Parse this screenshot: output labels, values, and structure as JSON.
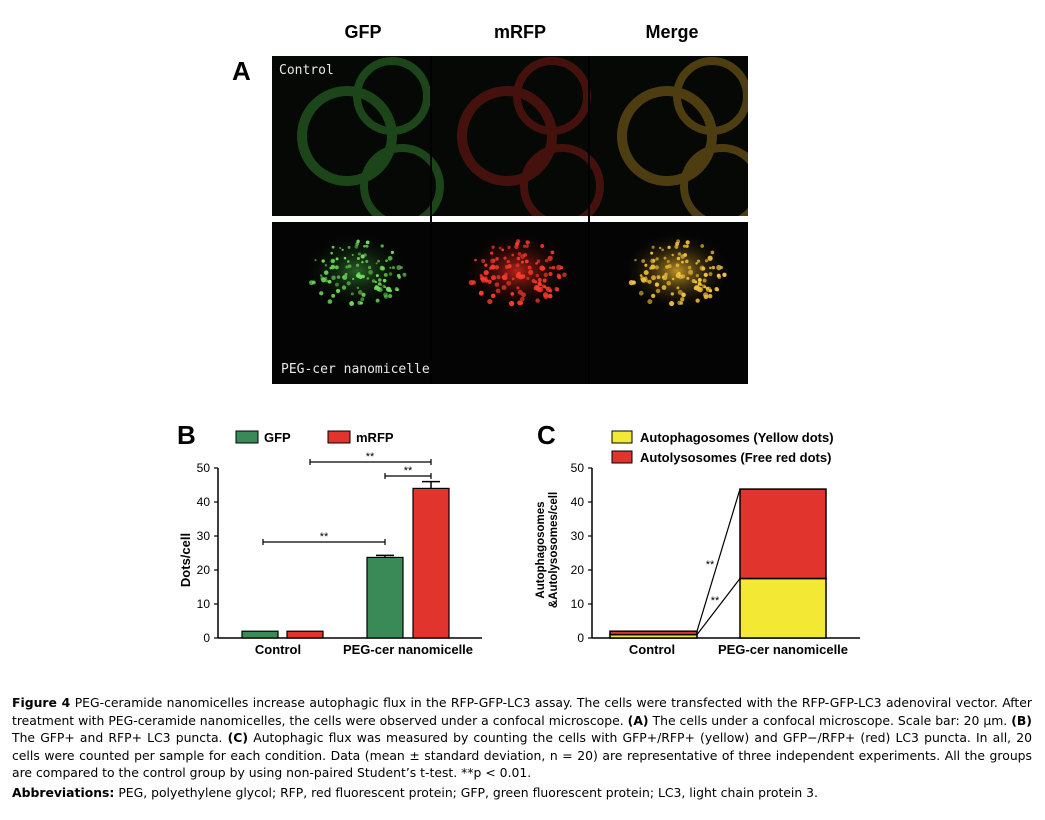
{
  "panelA": {
    "letter": "A",
    "columns": [
      "GFP",
      "mRFP",
      "Merge"
    ],
    "row_labels": [
      "Control",
      "PEG-cer nanomicelle"
    ]
  },
  "panelB": {
    "letter": "B",
    "legend": [
      {
        "label": "GFP",
        "color": "#3a8a57"
      },
      {
        "label": "mRFP",
        "color": "#e0342d"
      }
    ],
    "ylabel": "Dots/cell",
    "yticks": [
      "0",
      "10",
      "20",
      "30",
      "40",
      "50"
    ],
    "sig": [
      "**",
      "**",
      "**"
    ]
  },
  "panelC": {
    "letter": "C",
    "legend": [
      {
        "label": "Autophagosomes (Yellow dots)",
        "color": "#f3e834"
      },
      {
        "label": "Autolysosomes (Free red dots)",
        "color": "#e0342d"
      }
    ],
    "ylabel_line1": "Autophagosomes",
    "ylabel_line2": "&Autolysosomes/cell",
    "yticks": [
      "0",
      "10",
      "20",
      "30",
      "40",
      "50"
    ],
    "sig": [
      "**",
      "**"
    ]
  },
  "chart_data": [
    {
      "type": "bar",
      "categories": [
        "Control",
        "PEG-cer nanomicelle"
      ],
      "series": [
        {
          "name": "GFP",
          "values": [
            2,
            23.7
          ],
          "errors": [
            0,
            0.6
          ]
        },
        {
          "name": "mRFP",
          "values": [
            2,
            44
          ],
          "errors": [
            0,
            2
          ]
        }
      ],
      "ylabel": "Dots/cell",
      "ylim": [
        0,
        50
      ]
    },
    {
      "type": "bar",
      "stacked": true,
      "categories": [
        "Control",
        "PEG-cer nanomicelle"
      ],
      "series": [
        {
          "name": "Autophagosomes (Yellow dots)",
          "values": [
            1,
            17.5
          ]
        },
        {
          "name": "Autolysosomes (Free red dots)",
          "values": [
            1,
            26.3
          ]
        }
      ],
      "ylabel": "Autophagosomes &Autolysosomes/cell",
      "ylim": [
        0,
        50
      ]
    }
  ],
  "caption": {
    "figure_label": "Figure 4",
    "text": "PEG-ceramide nanomicelles increase autophagic flux in the RFP-GFP-LC3 assay. The cells were transfected with the RFP-GFP-LC3 adenoviral vector. After treatment with PEG-ceramide nanomicelles, the cells were observed under a confocal microscope.",
    "a_label": "(A)",
    "a_text": "The cells under a confocal microscope. Scale bar: 20 μm.",
    "b_label": "(B)",
    "b_text": "The GFP+ and RFP+ LC3 puncta.",
    "c_label": "(C)",
    "c_text": "Autophagic flux was measured by counting the cells with GFP+/RFP+ (yellow) and GFP−/RFP+ (red) LC3 puncta. In all, 20 cells were counted per sample for each condition. Data (mean ± standard deviation, n = 20) are representative of three independent experiments. All the groups are compared to the control group by using non-paired Student’s t-test. **p < 0.01.",
    "abbr_label": "Abbreviations:",
    "abbr_text": "PEG, polyethylene glycol; RFP, red fluorescent protein; GFP, green fluorescent protein; LC3, light chain protein 3."
  }
}
